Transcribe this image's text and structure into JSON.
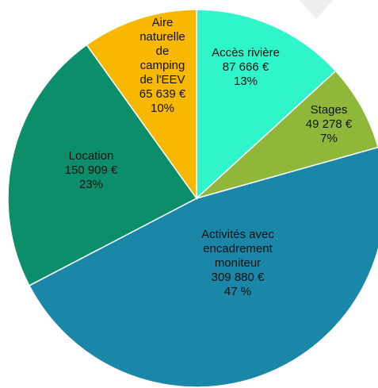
{
  "chart_data": {
    "type": "pie",
    "categories": [
      "Accès rivière",
      "Stages",
      "Activités avec encadrement moniteur",
      "Location",
      "Aire naturelle de camping de l'EEV"
    ],
    "values": [
      87666,
      49278,
      309880,
      150909,
      65639
    ],
    "value_labels": [
      "87 666 €",
      "49 278 €",
      "309 880 €",
      "150 909 €",
      "65 639 €"
    ],
    "percents": [
      13,
      7,
      47,
      23,
      10
    ],
    "percent_labels": [
      "13%",
      "7%",
      "47 %",
      "23%",
      "10%"
    ],
    "colors": [
      "#2ff5cb",
      "#8fb83b",
      "#1a86a8",
      "#0c8e6b",
      "#f8b800"
    ]
  }
}
